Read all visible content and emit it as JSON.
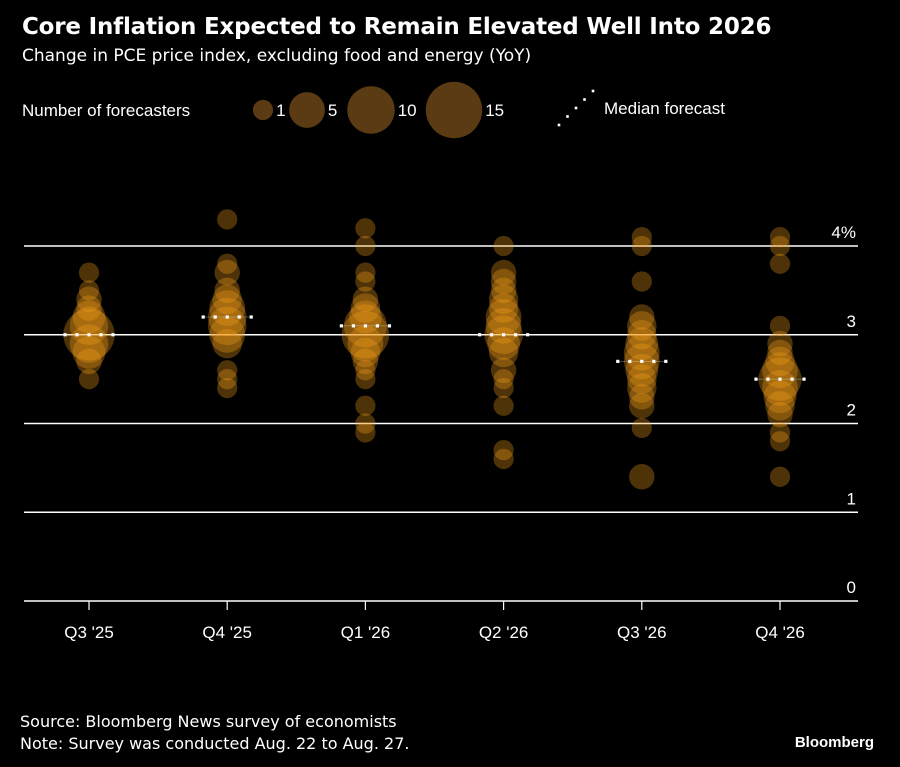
{
  "title": "Core Inflation Expected to Remain Elevated Well Into 2026",
  "subtitle": "Change in PCE price index, excluding food and energy (YoY)",
  "legend": {
    "size_label": "Number of forecasters",
    "sizes": [
      {
        "count": 1,
        "label": "1"
      },
      {
        "count": 5,
        "label": "5"
      },
      {
        "count": 10,
        "label": "10"
      },
      {
        "count": 15,
        "label": "15"
      }
    ],
    "median_label": "Median forecast"
  },
  "footer": {
    "source": "Source: Bloomberg News survey of economists",
    "note": "Note: Survey was conducted Aug. 22 to Aug. 27."
  },
  "brand": "Bloomberg",
  "colors": {
    "bubble": "#f5a01a",
    "legend_bubble": "#5b3b13",
    "grid": "#ffffff",
    "background": "#000000"
  },
  "chart_data": {
    "type": "scatter",
    "title": "Core Inflation Expected to Remain Elevated Well Into 2026",
    "subtitle": "Change in PCE price index, excluding food and energy (YoY)",
    "xlabel": "",
    "ylabel": "",
    "categories": [
      "Q3 '25",
      "Q4 '25",
      "Q1 '26",
      "Q2 '26",
      "Q3 '26",
      "Q4 '26"
    ],
    "ylim": [
      0,
      4
    ],
    "yticks": [
      {
        "value": 0,
        "label": "0"
      },
      {
        "value": 1,
        "label": "1"
      },
      {
        "value": 2,
        "label": "2"
      },
      {
        "value": 3,
        "label": "3"
      },
      {
        "value": 4,
        "label": "4%"
      }
    ],
    "grid": true,
    "legend_position": "top",
    "series": [
      {
        "name": "Q3 '25",
        "median": 3.0,
        "points": [
          {
            "value": 3.7,
            "count": 1
          },
          {
            "value": 3.5,
            "count": 1
          },
          {
            "value": 3.4,
            "count": 2
          },
          {
            "value": 3.3,
            "count": 2
          },
          {
            "value": 3.2,
            "count": 4
          },
          {
            "value": 3.1,
            "count": 6
          },
          {
            "value": 3.0,
            "count": 12
          },
          {
            "value": 2.9,
            "count": 6
          },
          {
            "value": 2.8,
            "count": 4
          },
          {
            "value": 2.7,
            "count": 2
          },
          {
            "value": 2.5,
            "count": 1
          }
        ]
      },
      {
        "name": "Q4 '25",
        "median": 3.2,
        "points": [
          {
            "value": 4.3,
            "count": 1
          },
          {
            "value": 3.8,
            "count": 1
          },
          {
            "value": 3.7,
            "count": 2
          },
          {
            "value": 3.5,
            "count": 2
          },
          {
            "value": 3.4,
            "count": 3
          },
          {
            "value": 3.3,
            "count": 5
          },
          {
            "value": 3.2,
            "count": 6
          },
          {
            "value": 3.1,
            "count": 6
          },
          {
            "value": 3.0,
            "count": 5
          },
          {
            "value": 2.9,
            "count": 3
          },
          {
            "value": 2.6,
            "count": 1
          },
          {
            "value": 2.5,
            "count": 1
          },
          {
            "value": 2.4,
            "count": 1
          }
        ]
      },
      {
        "name": "Q1 '26",
        "median": 3.1,
        "points": [
          {
            "value": 4.2,
            "count": 1
          },
          {
            "value": 4.0,
            "count": 1
          },
          {
            "value": 3.7,
            "count": 1
          },
          {
            "value": 3.6,
            "count": 1
          },
          {
            "value": 3.4,
            "count": 2
          },
          {
            "value": 3.3,
            "count": 3
          },
          {
            "value": 3.2,
            "count": 4
          },
          {
            "value": 3.1,
            "count": 8
          },
          {
            "value": 3.0,
            "count": 10
          },
          {
            "value": 2.9,
            "count": 5
          },
          {
            "value": 2.8,
            "count": 3
          },
          {
            "value": 2.7,
            "count": 2
          },
          {
            "value": 2.6,
            "count": 1
          },
          {
            "value": 2.5,
            "count": 1
          },
          {
            "value": 2.2,
            "count": 1
          },
          {
            "value": 2.0,
            "count": 1
          },
          {
            "value": 1.9,
            "count": 1
          }
        ]
      },
      {
        "name": "Q2 '26",
        "median": 3.0,
        "points": [
          {
            "value": 4.0,
            "count": 1
          },
          {
            "value": 3.7,
            "count": 2
          },
          {
            "value": 3.6,
            "count": 2
          },
          {
            "value": 3.5,
            "count": 2
          },
          {
            "value": 3.4,
            "count": 3
          },
          {
            "value": 3.3,
            "count": 3
          },
          {
            "value": 3.2,
            "count": 5
          },
          {
            "value": 3.1,
            "count": 5
          },
          {
            "value": 3.0,
            "count": 6
          },
          {
            "value": 2.9,
            "count": 4
          },
          {
            "value": 2.8,
            "count": 3
          },
          {
            "value": 2.6,
            "count": 2
          },
          {
            "value": 2.5,
            "count": 1
          },
          {
            "value": 2.4,
            "count": 1
          },
          {
            "value": 2.2,
            "count": 1
          },
          {
            "value": 1.7,
            "count": 1
          },
          {
            "value": 1.6,
            "count": 1
          }
        ]
      },
      {
        "name": "Q3 '26",
        "median": 2.7,
        "points": [
          {
            "value": 4.1,
            "count": 1
          },
          {
            "value": 4.0,
            "count": 1
          },
          {
            "value": 3.6,
            "count": 1
          },
          {
            "value": 3.2,
            "count": 2
          },
          {
            "value": 3.1,
            "count": 3
          },
          {
            "value": 3.0,
            "count": 3
          },
          {
            "value": 2.9,
            "count": 4
          },
          {
            "value": 2.8,
            "count": 5
          },
          {
            "value": 2.7,
            "count": 5
          },
          {
            "value": 2.6,
            "count": 4
          },
          {
            "value": 2.5,
            "count": 3
          },
          {
            "value": 2.4,
            "count": 3
          },
          {
            "value": 2.3,
            "count": 2
          },
          {
            "value": 2.2,
            "count": 2
          },
          {
            "value": 1.95,
            "count": 1
          },
          {
            "value": 1.4,
            "count": 2
          }
        ]
      },
      {
        "name": "Q4 '26",
        "median": 2.5,
        "points": [
          {
            "value": 4.1,
            "count": 1
          },
          {
            "value": 4.0,
            "count": 1
          },
          {
            "value": 3.8,
            "count": 1
          },
          {
            "value": 3.1,
            "count": 1
          },
          {
            "value": 2.9,
            "count": 2
          },
          {
            "value": 2.8,
            "count": 2
          },
          {
            "value": 2.7,
            "count": 3
          },
          {
            "value": 2.6,
            "count": 5
          },
          {
            "value": 2.5,
            "count": 8
          },
          {
            "value": 2.4,
            "count": 5
          },
          {
            "value": 2.3,
            "count": 4
          },
          {
            "value": 2.2,
            "count": 3
          },
          {
            "value": 2.1,
            "count": 2
          },
          {
            "value": 1.9,
            "count": 1
          },
          {
            "value": 1.8,
            "count": 1
          },
          {
            "value": 1.4,
            "count": 1
          }
        ]
      }
    ]
  }
}
